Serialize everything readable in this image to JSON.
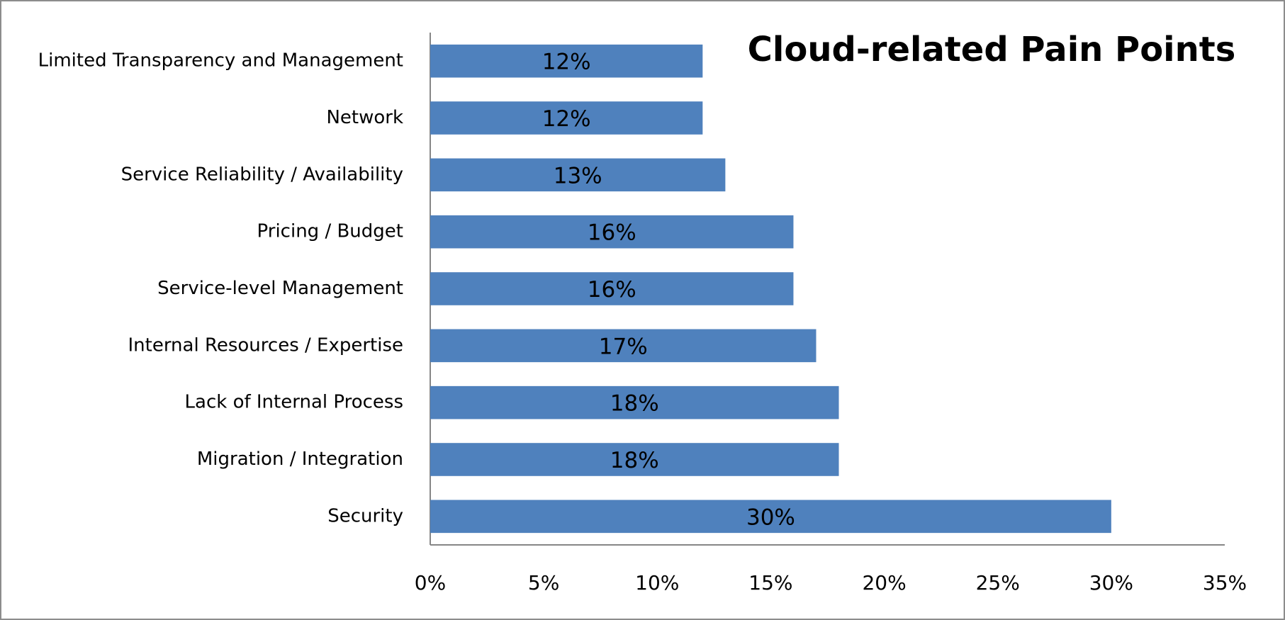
{
  "chart_data": {
    "type": "bar",
    "orientation": "horizontal",
    "title": "Cloud-related Pain Points",
    "categories": [
      "Limited Transparency and Management",
      "Network",
      "Service Reliability / Availability",
      "Pricing / Budget",
      "Service-level Management",
      "Internal Resources /  Expertise",
      "Lack of Internal Process",
      "Migration / Integration",
      "Security"
    ],
    "values": [
      12,
      12,
      13,
      16,
      16,
      17,
      18,
      18,
      30
    ],
    "value_labels": [
      "12%",
      "12%",
      "13%",
      "16%",
      "16%",
      "17%",
      "18%",
      "18%",
      "30%"
    ],
    "color": "#4f81bd",
    "xlim": [
      0,
      35
    ],
    "xticks": [
      {
        "value": 0,
        "label": "0%"
      },
      {
        "value": 5,
        "label": "5%"
      },
      {
        "value": 10,
        "label": "10%"
      },
      {
        "value": 15,
        "label": "15%"
      },
      {
        "value": 20,
        "label": "20%"
      },
      {
        "value": 25,
        "label": "25%"
      },
      {
        "value": 30,
        "label": "30%"
      },
      {
        "value": 35,
        "label": "35%"
      }
    ],
    "grid": false
  }
}
